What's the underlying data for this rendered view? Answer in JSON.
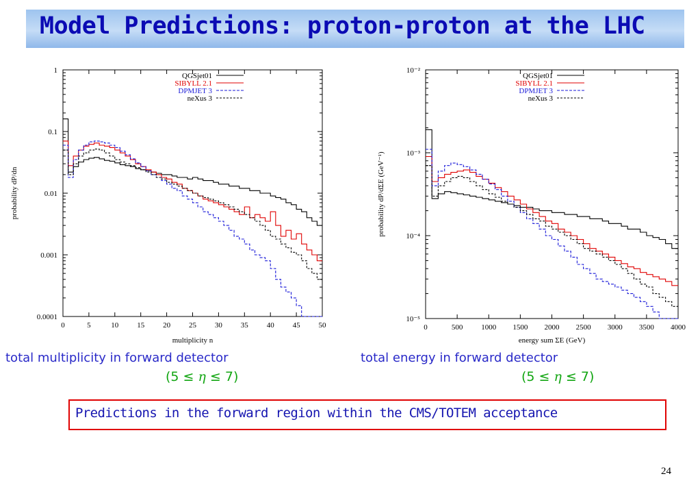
{
  "slide": {
    "title": "Model Predictions: proton-proton at the LHC",
    "caption_left": "total multiplicity in forward detector",
    "caption_right": "total energy in forward detector",
    "eta_range": {
      "pre": "(5 ≤ ",
      "sym": "η",
      "post": " ≤ 7)"
    },
    "prediction_note": "Predictions in the forward region within the CMS/TOTEM acceptance",
    "page_number": "24"
  },
  "colors": {
    "title": "#0b0bb4",
    "caption": "#2929c8",
    "eta": "#11a511",
    "box_border": "#e00000",
    "QGSjet01": "#000000",
    "SIBYLL 2.1": "#e00000",
    "DPMJET 3": "#1a1ad8",
    "neXus 3": "#000000"
  },
  "chart_data": [
    {
      "type": "line",
      "step": true,
      "xlabel": "multiplicity n",
      "ylabel": "probability dP/dn",
      "xlim": [
        0,
        50
      ],
      "ylim": [
        0.0001,
        1
      ],
      "log_y": true,
      "x_ticks": [
        0,
        5,
        10,
        15,
        20,
        25,
        30,
        35,
        40,
        45,
        50
      ],
      "y_ticks": [
        0.0001,
        0.001,
        0.01,
        0.1,
        1
      ],
      "y_tick_labels": [
        "0.0001",
        "0.001",
        "0.01",
        "0.1",
        "1"
      ],
      "legend_position": "top-right",
      "x": [
        0,
        1,
        2,
        3,
        4,
        5,
        6,
        7,
        8,
        9,
        10,
        11,
        12,
        13,
        14,
        15,
        16,
        17,
        18,
        19,
        20,
        21,
        22,
        23,
        24,
        25,
        26,
        27,
        28,
        29,
        30,
        31,
        32,
        33,
        34,
        35,
        36,
        37,
        38,
        39,
        40,
        41,
        42,
        43,
        44,
        45,
        46,
        47,
        48,
        49
      ],
      "series": [
        {
          "name": "QGSjet01",
          "dash": "solid",
          "values": [
            0.16,
            0.022,
            0.027,
            0.032,
            0.035,
            0.037,
            0.038,
            0.036,
            0.034,
            0.033,
            0.031,
            0.029,
            0.028,
            0.027,
            0.025,
            0.024,
            0.023,
            0.022,
            0.021,
            0.02,
            0.02,
            0.019,
            0.018,
            0.018,
            0.017,
            0.018,
            0.017,
            0.016,
            0.016,
            0.015,
            0.014,
            0.014,
            0.013,
            0.013,
            0.012,
            0.012,
            0.011,
            0.011,
            0.01,
            0.01,
            0.009,
            0.0085,
            0.008,
            0.007,
            0.0065,
            0.0055,
            0.005,
            0.004,
            0.0035,
            0.003
          ]
        },
        {
          "name": "SIBYLL 2.1",
          "dash": "solid",
          "values": [
            0.07,
            0.028,
            0.04,
            0.05,
            0.058,
            0.062,
            0.065,
            0.06,
            0.058,
            0.055,
            0.05,
            0.045,
            0.04,
            0.035,
            0.03,
            0.027,
            0.024,
            0.022,
            0.02,
            0.018,
            0.017,
            0.015,
            0.014,
            0.012,
            0.011,
            0.01,
            0.009,
            0.008,
            0.0075,
            0.007,
            0.0065,
            0.006,
            0.0055,
            0.005,
            0.0045,
            0.006,
            0.004,
            0.0045,
            0.004,
            0.0035,
            0.005,
            0.003,
            0.002,
            0.0025,
            0.0018,
            0.0022,
            0.0015,
            0.0012,
            0.001,
            0.0008
          ]
        },
        {
          "name": "DPMJET 3",
          "dash": "4,2",
          "values": [
            0.06,
            0.018,
            0.035,
            0.05,
            0.06,
            0.068,
            0.07,
            0.068,
            0.065,
            0.06,
            0.055,
            0.048,
            0.042,
            0.036,
            0.031,
            0.027,
            0.023,
            0.02,
            0.018,
            0.016,
            0.014,
            0.012,
            0.011,
            0.009,
            0.008,
            0.007,
            0.006,
            0.005,
            0.0045,
            0.004,
            0.0035,
            0.003,
            0.0025,
            0.002,
            0.0018,
            0.0015,
            0.0012,
            0.001,
            0.0009,
            0.0008,
            0.0006,
            0.0004,
            0.0003,
            0.00025,
            0.0002,
            0.00015,
            0.0001,
            0.0001,
            0.0001,
            0.0001
          ]
        },
        {
          "name": "neXus 3",
          "dash": "3,2",
          "values": [
            0.05,
            0.02,
            0.03,
            0.04,
            0.045,
            0.05,
            0.052,
            0.05,
            0.045,
            0.04,
            0.035,
            0.032,
            0.03,
            0.028,
            0.026,
            0.024,
            0.022,
            0.02,
            0.018,
            0.017,
            0.015,
            0.014,
            0.013,
            0.012,
            0.011,
            0.01,
            0.009,
            0.0085,
            0.008,
            0.0075,
            0.007,
            0.0065,
            0.006,
            0.0055,
            0.005,
            0.0045,
            0.004,
            0.0035,
            0.003,
            0.0025,
            0.002,
            0.0018,
            0.0015,
            0.0013,
            0.0011,
            0.001,
            0.0008,
            0.0006,
            0.0005,
            0.0004
          ]
        }
      ]
    },
    {
      "type": "line",
      "step": true,
      "xlabel": "energy sum ΣE    (GeV)",
      "ylabel": "probability dP/dΣE    (GeV⁻¹)",
      "xlim": [
        0,
        4000
      ],
      "ylim": [
        1e-05,
        0.01
      ],
      "log_y": true,
      "x_ticks": [
        0,
        500,
        1000,
        1500,
        2000,
        2500,
        3000,
        3500,
        4000
      ],
      "y_ticks": [
        1e-05,
        0.0001,
        0.001,
        0.01
      ],
      "y_tick_labels": [
        "10⁻⁵",
        "10⁻⁴",
        "10⁻³",
        "10⁻²"
      ],
      "legend_position": "top-right",
      "x": [
        0,
        100,
        200,
        300,
        400,
        500,
        600,
        700,
        800,
        900,
        1000,
        1100,
        1200,
        1300,
        1400,
        1500,
        1600,
        1700,
        1800,
        1900,
        2000,
        2100,
        2200,
        2300,
        2400,
        2500,
        2600,
        2700,
        2800,
        2900,
        3000,
        3100,
        3200,
        3300,
        3400,
        3500,
        3600,
        3700,
        3800,
        3900
      ],
      "series": [
        {
          "name": "QGSjet01",
          "dash": "solid",
          "values": [
            0.0019,
            0.00028,
            0.00032,
            0.00034,
            0.00033,
            0.00032,
            0.00031,
            0.0003,
            0.00029,
            0.00028,
            0.00027,
            0.00026,
            0.00025,
            0.00024,
            0.00023,
            0.00022,
            0.00022,
            0.00021,
            0.0002,
            0.0002,
            0.00019,
            0.00019,
            0.00018,
            0.00018,
            0.00017,
            0.00017,
            0.00016,
            0.00016,
            0.00015,
            0.00014,
            0.00014,
            0.00013,
            0.00012,
            0.00012,
            0.00011,
            0.0001,
            9.5e-05,
            9e-05,
            8e-05,
            7e-05
          ]
        },
        {
          "name": "SIBYLL 2.1",
          "dash": "solid",
          "values": [
            0.0009,
            0.00045,
            0.0005,
            0.00055,
            0.00058,
            0.0006,
            0.00062,
            0.00058,
            0.00052,
            0.00048,
            0.00043,
            0.00038,
            0.00034,
            0.0003,
            0.00027,
            0.00024,
            0.00021,
            0.00019,
            0.00017,
            0.00015,
            0.00014,
            0.00012,
            0.00011,
            0.0001,
            9e-05,
            8e-05,
            7e-05,
            6.5e-05,
            6e-05,
            5.5e-05,
            5e-05,
            4.6e-05,
            4.2e-05,
            4e-05,
            3.6e-05,
            3.4e-05,
            3.2e-05,
            3e-05,
            2.8e-05,
            2.5e-05
          ]
        },
        {
          "name": "DPMJET 3",
          "dash": "4,2",
          "values": [
            0.0011,
            0.0004,
            0.0006,
            0.0007,
            0.00075,
            0.00072,
            0.00068,
            0.00062,
            0.00055,
            0.00048,
            0.00042,
            0.00036,
            0.0003,
            0.00026,
            0.00022,
            0.00019,
            0.00016,
            0.00014,
            0.00012,
            0.0001,
            9e-05,
            7.5e-05,
            6.5e-05,
            5.5e-05,
            4.5e-05,
            4e-05,
            3.5e-05,
            3e-05,
            2.8e-05,
            2.6e-05,
            2.4e-05,
            2.2e-05,
            2e-05,
            1.8e-05,
            1.6e-05,
            1.4e-05,
            1.2e-05,
            1e-05,
            1e-05,
            1e-05
          ]
        },
        {
          "name": "neXus 3",
          "dash": "3,2",
          "values": [
            0.0007,
            0.0003,
            0.0004,
            0.00045,
            0.0005,
            0.00052,
            0.0005,
            0.00045,
            0.0004,
            0.00036,
            0.00032,
            0.00029,
            0.00026,
            0.00024,
            0.00022,
            0.0002,
            0.00018,
            0.00016,
            0.00015,
            0.00013,
            0.00012,
            0.00011,
            0.0001,
            9e-05,
            8e-05,
            7e-05,
            6.5e-05,
            6e-05,
            5.5e-05,
            5e-05,
            4.5e-05,
            4e-05,
            3.5e-05,
            3e-05,
            2.6e-05,
            2.4e-05,
            2e-05,
            1.8e-05,
            1.6e-05,
            1.4e-05
          ]
        }
      ]
    }
  ]
}
